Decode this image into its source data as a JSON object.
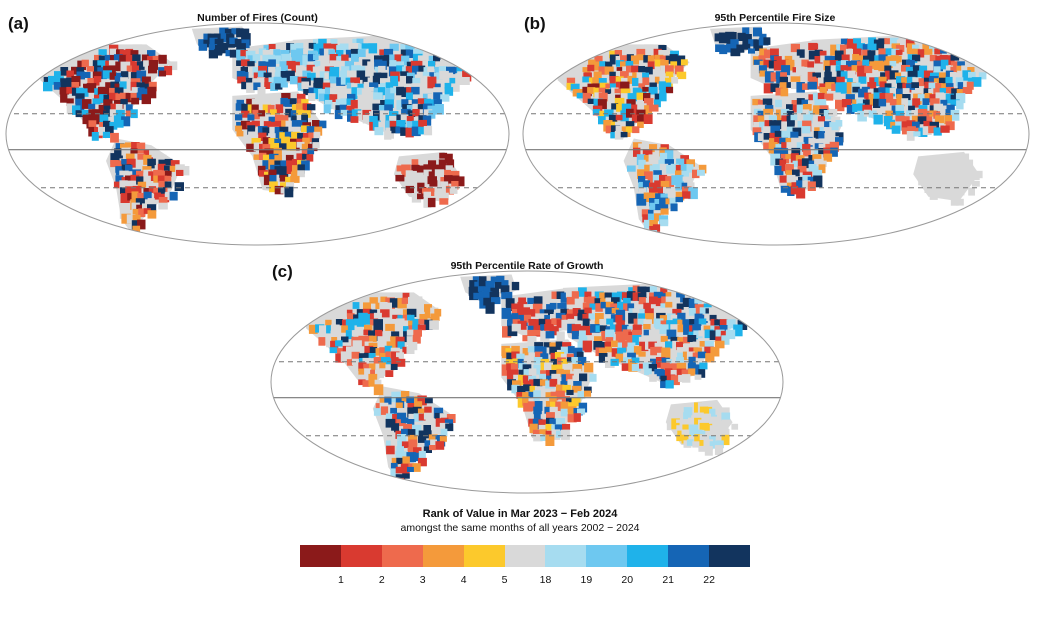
{
  "panels": [
    {
      "letter": "(a)",
      "title": "Number of Fires (Count)"
    },
    {
      "letter": "(b)",
      "title": "95th Percentile Fire Size"
    },
    {
      "letter": "(c)",
      "title": "95th Percentile Rate of Growth"
    }
  ],
  "legend": {
    "title": "Rank of Value in Mar 2023 − Feb 2024",
    "subtitle": "amongst the same months of all years 2002 − 2024",
    "colors": [
      "#8b1a1a",
      "#d93a30",
      "#ee6a4d",
      "#f49a3b",
      "#fcc92c",
      "#d9d9d9",
      "#a6dcf0",
      "#6ec8f0",
      "#1fb2ea",
      "#1565b5",
      "#12345e"
    ],
    "labels": [
      "1",
      "2",
      "3",
      "4",
      "5",
      "18",
      "19",
      "20",
      "21",
      "22"
    ]
  },
  "colors": {
    "land_default": "#d9d9d9",
    "ocean": "#ffffff",
    "frame": "#9a9a9a",
    "gridline": "#777777"
  }
}
